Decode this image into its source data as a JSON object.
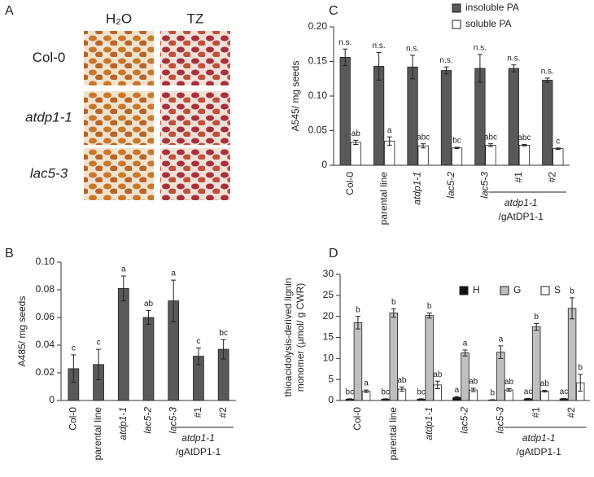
{
  "photo_panel": {
    "label": "A",
    "columns": [
      "H₂O",
      "TZ"
    ],
    "rows": [
      "Col-0",
      "atdp1-1",
      "lac5-3"
    ],
    "row_italic": [
      false,
      true,
      true
    ]
  },
  "chart_data": [
    {
      "type": "bar",
      "panel": "B",
      "ylabel": "A485/ mg seeds",
      "categories": [
        "Col-0",
        "parental line",
        "atdp1-1",
        "lac5-2",
        "lac5-3",
        "#1",
        "#2"
      ],
      "italic": [
        false,
        false,
        true,
        true,
        true,
        false,
        false
      ],
      "group_label": [
        "atdp1-1",
        "/gAtDP1-1"
      ],
      "series": [
        {
          "name": "A485",
          "color": "#595959",
          "values": [
            0.023,
            0.026,
            0.081,
            0.06,
            0.072,
            0.032,
            0.037
          ],
          "errors": [
            0.01,
            0.011,
            0.009,
            0.005,
            0.015,
            0.006,
            0.007
          ],
          "annotations": [
            "c",
            "c",
            "a",
            "ab",
            "a",
            "c",
            "bc"
          ]
        }
      ],
      "ylim": [
        0,
        0.1
      ],
      "yticks": [
        0,
        0.02,
        0.04,
        0.06,
        0.08,
        {
          "value": 0.1,
          "label": "0.10"
        }
      ]
    },
    {
      "type": "bar",
      "panel": "C",
      "ylabel": "A545/ mg seeds",
      "categories": [
        "Col-0",
        "parental line",
        "atdp1-1",
        "lac5-2",
        "lac5-3",
        "#1",
        "#2"
      ],
      "italic": [
        false,
        false,
        true,
        true,
        true,
        false,
        false
      ],
      "group_label": [
        "atdp1-1",
        "/gAtDP1-1"
      ],
      "series": [
        {
          "name": "insoluble PA",
          "color": "#595959",
          "values": [
            0.156,
            0.143,
            0.142,
            0.137,
            0.14,
            0.14,
            0.123
          ],
          "errors": [
            0.012,
            0.02,
            0.017,
            0.005,
            0.02,
            0.005,
            0.003
          ],
          "annotations": [
            "n.s.",
            "n.s.",
            "n.s.",
            "n.s.",
            "n.s.",
            "n.s.",
            "n.s."
          ]
        },
        {
          "name": "soluble PA",
          "color": "#ffffff",
          "values": [
            0.033,
            0.035,
            0.028,
            0.025,
            0.029,
            0.029,
            0.024
          ],
          "errors": [
            0.003,
            0.006,
            0.003,
            0.001,
            0.002,
            0.001,
            0.001
          ],
          "annotations": [
            "ab",
            "a",
            "abc",
            "bc",
            "abc",
            "abc",
            "c"
          ]
        }
      ],
      "ylim": [
        0,
        0.2
      ],
      "yticks": [
        0,
        0.05,
        {
          "value": 0.1,
          "label": "0.10"
        },
        0.15,
        {
          "value": 0.2,
          "label": "0.20"
        }
      ],
      "legend": "top-right"
    },
    {
      "type": "bar",
      "panel": "D",
      "ylabel": [
        "thioacidolysis-derived lignin",
        "monomer (µmol/ g CWR)"
      ],
      "categories": [
        "Col-0",
        "parental line",
        "atdp1-1",
        "lac5-2",
        "lac5-3",
        "#1",
        "#2"
      ],
      "italic": [
        false,
        false,
        true,
        true,
        true,
        false,
        false
      ],
      "group_label": [
        "atdp1-1",
        "/gAtDP1-1"
      ],
      "series": [
        {
          "name": "H",
          "color": "#111111",
          "values": [
            0.3,
            0.3,
            0.3,
            0.7,
            0.1,
            0.4,
            0.4
          ],
          "errors": [
            0.1,
            0.1,
            0.1,
            0.2,
            0.1,
            0.1,
            0.1
          ],
          "annotations": [
            "bc",
            "bc",
            "bc",
            "a",
            "b",
            "ac",
            "ac"
          ]
        },
        {
          "name": "G",
          "color": "#bfbfbf",
          "values": [
            18.5,
            20.8,
            20.2,
            11.3,
            11.5,
            17.5,
            21.9
          ],
          "errors": [
            1.5,
            1.0,
            0.6,
            0.7,
            1.5,
            0.8,
            2.5
          ],
          "annotations": [
            "b",
            "b",
            "b",
            "a",
            "a",
            "b",
            "b"
          ]
        },
        {
          "name": "S",
          "color": "#ffffff",
          "values": [
            2.2,
            2.7,
            3.7,
            2.5,
            2.5,
            2.2,
            4.2
          ],
          "errors": [
            0.3,
            0.5,
            0.9,
            0.4,
            0.3,
            0.2,
            2.0
          ],
          "annotations": [
            "a",
            "ab",
            "ab",
            "ab",
            "ab",
            "ab",
            "b"
          ]
        }
      ],
      "ylim": [
        0,
        30
      ],
      "yticks": [
        0,
        5,
        10,
        15,
        20,
        25,
        30
      ],
      "legend": "top-right"
    }
  ]
}
